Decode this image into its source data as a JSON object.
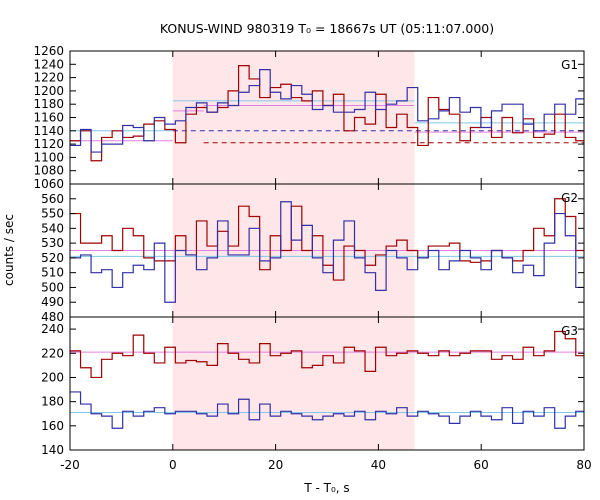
{
  "title": "KONUS-WIND 980319 T₀ = 18667s UT (05:11:07.000)",
  "chart_data": {
    "type": "line",
    "title": "KONUS-WIND 980319 T₀ = 18667s UT (05:11:07.000)",
    "xlabel": "T - T₀, s",
    "ylabel": "counts / sec",
    "xlim": [
      -20,
      80
    ],
    "x_ticks": [
      "-20",
      "0",
      "20",
      "40",
      "60",
      "80"
    ],
    "highlight_interval": [
      0,
      47
    ],
    "colors": {
      "red": "#a00000",
      "blue": "#3030a8",
      "pink_band": "#ffe6e8",
      "cyan": "#80c8e8",
      "violet": "#e080e0"
    },
    "panels": [
      {
        "label": "G1",
        "ylim": [
          1060,
          1260
        ],
        "y_ticks": [
          "1060",
          "1080",
          "1100",
          "1120",
          "1140",
          "1160",
          "1180",
          "1200",
          "1220",
          "1240",
          "1260"
        ],
        "bin_edges": [
          -20,
          -17.95,
          -15.9,
          -13.85,
          -11.8,
          -9.75,
          -7.7,
          -5.65,
          -3.6,
          -1.55,
          0.5,
          2.55,
          4.6,
          6.65,
          8.7,
          10.75,
          12.8,
          14.85,
          16.9,
          18.95,
          21,
          23.05,
          25.1,
          27.15,
          29.2,
          31.25,
          33.3,
          35.35,
          37.4,
          39.45,
          41.5,
          43.55,
          45.6,
          47.65,
          49.7,
          51.75,
          53.8,
          55.85,
          57.9,
          59.95,
          62,
          64.05,
          66.1,
          68.15,
          70.2,
          72.25,
          74.3,
          76.35,
          78.4,
          80
        ],
        "series": [
          {
            "color": "red",
            "values": [
              1125,
              1140,
              1095,
              1130,
              1140,
              1130,
              1132,
              1150,
              1155,
              1142,
              1122,
              1165,
              1175,
              1168,
              1175,
              1200,
              1238,
              1218,
              1190,
              1205,
              1210,
              1190,
              1185,
              1200,
              1178,
              1195,
              1140,
              1160,
              1150,
              1195,
              1145,
              1165,
              1145,
              1118,
              1190,
              1172,
              1165,
              1125,
              1145,
              1160,
              1130,
              1160,
              1137,
              1158,
              1130,
              1135,
              1165,
              1130,
              1125
            ]
          },
          {
            "color": "blue",
            "values": [
              1118,
              1142,
              1108,
              1120,
              1120,
              1148,
              1145,
              1125,
              1160,
              1150,
              1155,
              1175,
              1182,
              1168,
              1182,
              1178,
              1198,
              1208,
              1232,
              1198,
              1188,
              1208,
              1195,
              1172,
              1178,
              1168,
              1168,
              1172,
              1198,
              1172,
              1180,
              1185,
              1205,
              1155,
              1158,
              1170,
              1190,
              1168,
              1175,
              1145,
              1170,
              1180,
              1180,
              1150,
              1140,
              1165,
              1180,
              1165,
              1188
            ]
          }
        ],
        "references": [
          {
            "color": "cyan",
            "dashed": false,
            "segments": [
              [
                -20,
                0,
                1140
              ],
              [
                0,
                47,
                1185
              ],
              [
                47,
                80,
                1152
              ]
            ]
          },
          {
            "color": "violet",
            "dashed": false,
            "segments": [
              [
                -20,
                0,
                1125
              ],
              [
                0,
                6,
                1170
              ],
              [
                6,
                47,
                1178
              ],
              [
                47,
                80,
                1138
              ]
            ]
          },
          {
            "color": "blue",
            "dashed": true,
            "segments": [
              [
                0,
                80,
                1140
              ]
            ]
          },
          {
            "color": "red",
            "dashed": true,
            "segments": [
              [
                6,
                80,
                1122
              ]
            ]
          }
        ]
      },
      {
        "label": "G2",
        "ylim": [
          480,
          570
        ],
        "y_ticks": [
          "480",
          "490",
          "500",
          "510",
          "520",
          "530",
          "540",
          "550",
          "560"
        ],
        "bin_edges": [
          -20,
          -17.95,
          -15.9,
          -13.85,
          -11.8,
          -9.75,
          -7.7,
          -5.65,
          -3.6,
          -1.55,
          0.5,
          2.55,
          4.6,
          6.65,
          8.7,
          10.75,
          12.8,
          14.85,
          16.9,
          18.95,
          21,
          23.05,
          25.1,
          27.15,
          29.2,
          31.25,
          33.3,
          35.35,
          37.4,
          39.45,
          41.5,
          43.55,
          45.6,
          47.65,
          49.7,
          51.75,
          53.8,
          55.85,
          57.9,
          59.95,
          62,
          64.05,
          66.1,
          68.15,
          70.2,
          72.25,
          74.3,
          76.35,
          78.4,
          80
        ],
        "series": [
          {
            "color": "red",
            "values": [
              550,
              530,
              530,
              535,
              525,
              540,
              535,
              520,
              518,
              518,
              535,
              522,
              545,
              528,
              538,
              528,
              555,
              548,
              512,
              535,
              525,
              555,
              525,
              535,
              515,
              505,
              528,
              525,
              515,
              522,
              528,
              532,
              525,
              520,
              528,
              528,
              530,
              518,
              517,
              518,
              525,
              520,
              518,
              525,
              540,
              535,
              560,
              548,
              525
            ]
          },
          {
            "color": "blue",
            "values": [
              520,
              522,
              510,
              512,
              500,
              510,
              515,
              512,
              530,
              490,
              525,
              522,
              512,
              520,
              545,
              522,
              522,
              540,
              518,
              520,
              558,
              532,
              542,
              520,
              510,
              532,
              545,
              520,
              510,
              498,
              525,
              520,
              512,
              520,
              525,
              512,
              518,
              525,
              520,
              512,
              525,
              520,
              510,
              515,
              508,
              530,
              550,
              535,
              500
            ]
          }
        ],
        "references": [
          {
            "color": "violet",
            "dashed": false,
            "segments": [
              [
                -20,
                80,
                525
              ]
            ]
          },
          {
            "color": "cyan",
            "dashed": false,
            "segments": [
              [
                -20,
                80,
                521
              ]
            ]
          }
        ]
      },
      {
        "label": "G3",
        "ylim": [
          140,
          250
        ],
        "y_ticks": [
          "140",
          "160",
          "180",
          "200",
          "220",
          "240"
        ],
        "bin_edges": [
          -20,
          -17.95,
          -15.9,
          -13.85,
          -11.8,
          -9.75,
          -7.7,
          -5.65,
          -3.6,
          -1.55,
          0.5,
          2.55,
          4.6,
          6.65,
          8.7,
          10.75,
          12.8,
          14.85,
          16.9,
          18.95,
          21,
          23.05,
          25.1,
          27.15,
          29.2,
          31.25,
          33.3,
          35.35,
          37.4,
          39.45,
          41.5,
          43.55,
          45.6,
          47.65,
          49.7,
          51.75,
          53.8,
          55.85,
          57.9,
          59.95,
          62,
          64.05,
          66.1,
          68.15,
          70.2,
          72.25,
          74.3,
          76.35,
          78.4,
          80
        ],
        "series": [
          {
            "color": "red",
            "values": [
              222,
              208,
              200,
              215,
              220,
              218,
              235,
              220,
              212,
              225,
              212,
              214,
              213,
              210,
              228,
              220,
              215,
              212,
              228,
              218,
              220,
              222,
              208,
              210,
              218,
              212,
              225,
              222,
              205,
              225,
              218,
              220,
              222,
              220,
              218,
              222,
              218,
              220,
              222,
              222,
              215,
              218,
              215,
              225,
              218,
              222,
              238,
              232,
              218
            ]
          },
          {
            "color": "blue",
            "values": [
              188,
              178,
              170,
              168,
              158,
              172,
              168,
              172,
              175,
              170,
              172,
              172,
              170,
              168,
              178,
              170,
              182,
              165,
              178,
              168,
              172,
              170,
              168,
              165,
              168,
              170,
              168,
              172,
              165,
              172,
              170,
              175,
              168,
              172,
              170,
              168,
              162,
              168,
              172,
              168,
              165,
              175,
              162,
              172,
              168,
              175,
              158,
              168,
              172
            ]
          }
        ],
        "references": [
          {
            "color": "violet",
            "dashed": false,
            "segments": [
              [
                -20,
                80,
                221
              ]
            ]
          },
          {
            "color": "cyan",
            "dashed": false,
            "segments": [
              [
                -20,
                80,
                171
              ]
            ]
          }
        ]
      }
    ]
  }
}
